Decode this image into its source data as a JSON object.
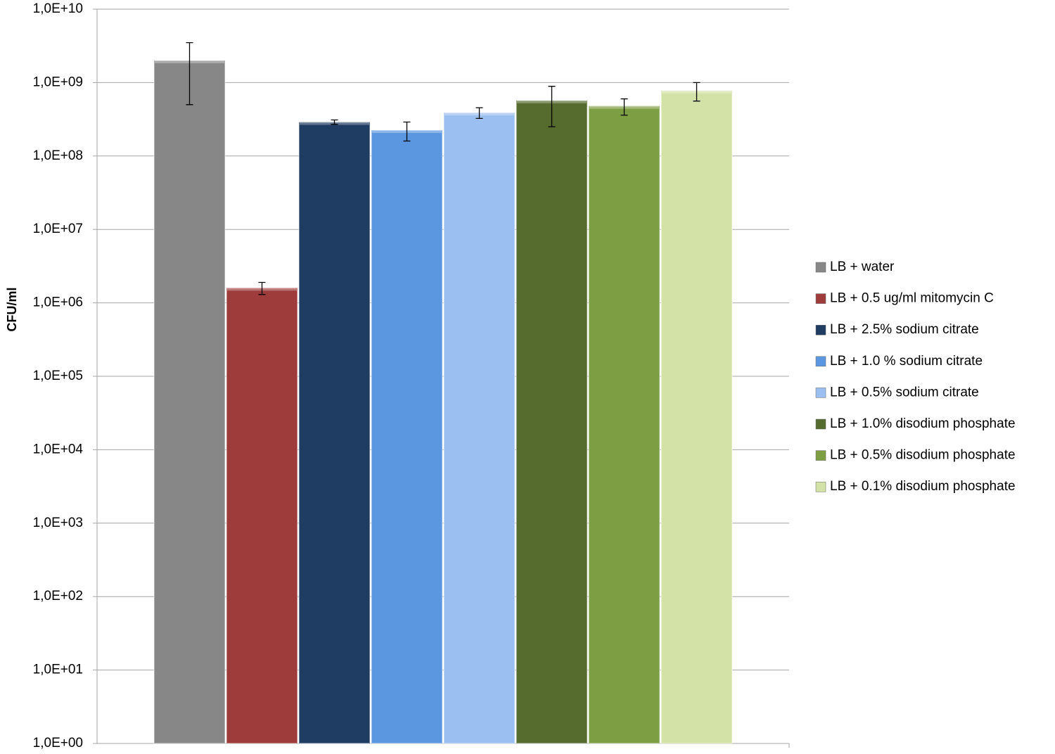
{
  "chart_data": {
    "type": "bar",
    "y_label": "CFU/ml",
    "log_scale": true,
    "grid": true,
    "legend": "right",
    "categories": [
      null
    ],
    "ylim": [
      1,
      10000000000
    ],
    "yticks": [
      {
        "value": 1,
        "label": "1,0E+00"
      },
      {
        "value": 10,
        "label": "1,0E+01"
      },
      {
        "value": 100,
        "label": "1,0E+02"
      },
      {
        "value": 1000,
        "label": "1,0E+03"
      },
      {
        "value": 10000,
        "label": "1,0E+04"
      },
      {
        "value": 100000,
        "label": "1,0E+05"
      },
      {
        "value": 1000000,
        "label": "1,0E+06"
      },
      {
        "value": 10000000,
        "label": "1,0E+07"
      },
      {
        "value": 100000000,
        "label": "1,0E+08"
      },
      {
        "value": 1000000000,
        "label": "1,0E+09"
      },
      {
        "value": 10000000000,
        "label": "1,0E+10"
      }
    ],
    "series": [
      {
        "name": "LB + water",
        "color": "#878787",
        "values": [
          2000000000
        ],
        "errors": [
          1500000000
        ]
      },
      {
        "name": "LB + 0.5 ug/ml mitomycin C",
        "color": "#9e3b3b",
        "values": [
          1600000
        ],
        "errors": [
          300000
        ]
      },
      {
        "name": "LB + 2.5% sodium citrate",
        "color": "#1f3c63",
        "values": [
          290000000
        ],
        "errors": [
          20000000
        ]
      },
      {
        "name": "LB + 1.0 % sodium citrate",
        "color": "#5b97e0",
        "values": [
          225000000
        ],
        "errors": [
          65000000
        ]
      },
      {
        "name": "LB + 0.5% sodium citrate",
        "color": "#9bbff0",
        "values": [
          390000000
        ],
        "errors": [
          65000000
        ]
      },
      {
        "name": "LB + 1.0% disodium phosphate",
        "color": "#566b2e",
        "values": [
          570000000
        ],
        "errors": [
          320000000
        ]
      },
      {
        "name": "LB + 0.5% disodium phosphate",
        "color": "#7e9e44",
        "values": [
          480000000
        ],
        "errors": [
          120000000
        ]
      },
      {
        "name": "LB + 0.1% disodium phosphate",
        "color": "#d3e3a7",
        "values": [
          780000000
        ],
        "errors": [
          220000000
        ]
      }
    ]
  }
}
